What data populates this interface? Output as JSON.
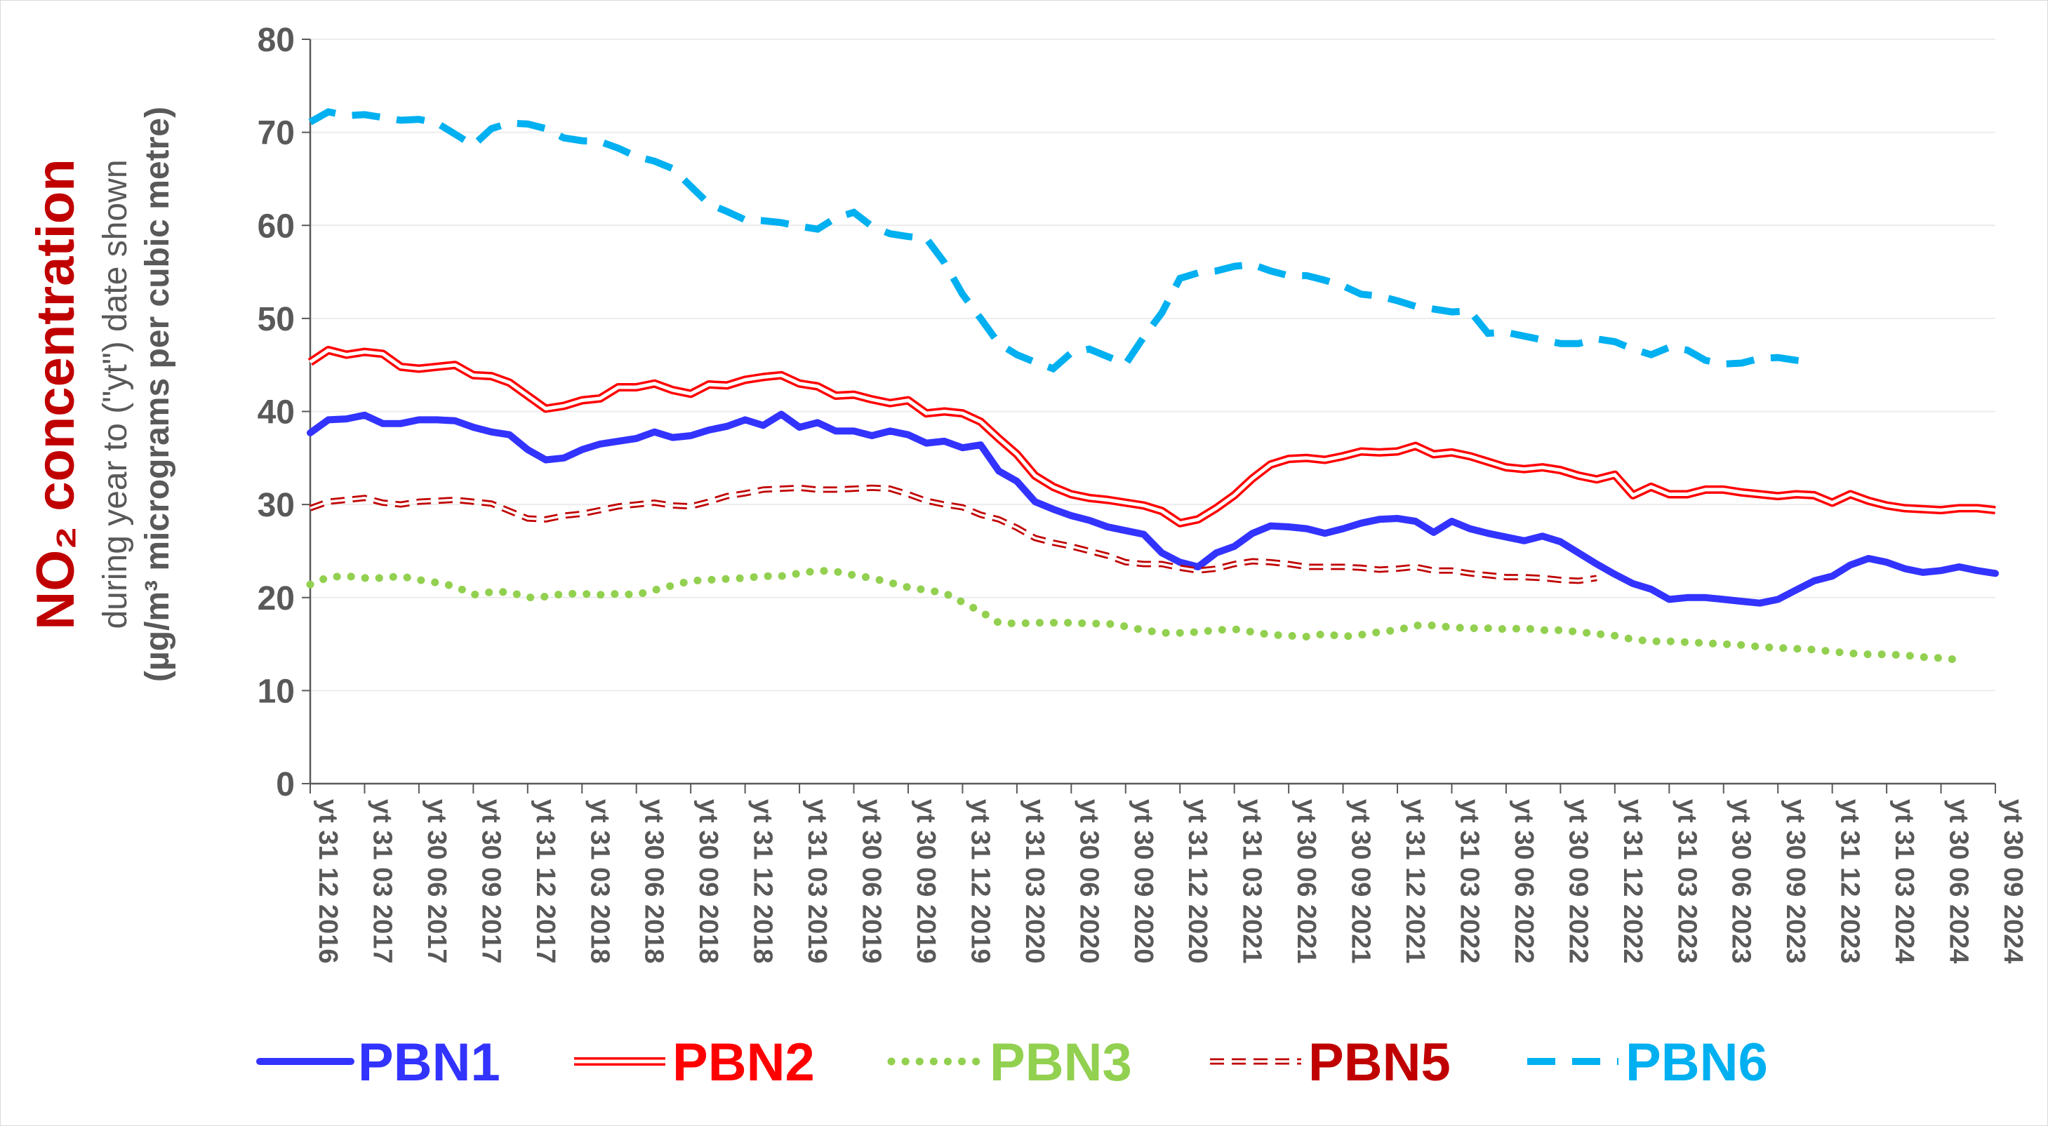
{
  "chart_data": {
    "type": "line",
    "ylabel": {
      "main": "NO₂ concentration",
      "line2": "during year to (\"yt\") date shown",
      "line3": "(µg/m³ micrograms per cubic metre)"
    },
    "ylim": [
      0,
      80
    ],
    "yticks": [
      0,
      10,
      20,
      30,
      40,
      50,
      60,
      70,
      80
    ],
    "grid": "horizontal",
    "legend_position": "bottom",
    "x_tick_labels": [
      "yt 31 12 2016",
      "yt 31 03 2017",
      "yt 30 06 2017",
      "yt 30 09 2017",
      "yt 31 12 2017",
      "yt 31 03 2018",
      "yt 30 06 2018",
      "yt 30 09 2018",
      "yt 31 12 2018",
      "yt 31 03 2019",
      "yt 30 06 2019",
      "yt 30 09 2019",
      "yt 31 12 2019",
      "yt 31 03 2020",
      "yt 30 06 2020",
      "yt 30 09 2020",
      "yt 31 12 2020",
      "yt 31 03 2021",
      "yt 30 06 2021",
      "yt 30 09 2021",
      "yt 31 12 2021",
      "yt 31 03 2022",
      "yt 30 06 2022",
      "yt 30 09 2022",
      "yt 31 12 2022",
      "yt 31 03 2023",
      "yt 30 06 2023",
      "yt 30 09 2023",
      "yt 31 12 2023",
      "yt 31 03 2024",
      "yt 30 06 2024",
      "yt 30 09 2024"
    ],
    "series": [
      {
        "name": "PBN1",
        "color": "#3333ff",
        "style": "solid",
        "values": [
          37.7,
          39.1,
          39.2,
          39.6,
          38.7,
          38.7,
          39.1,
          39.1,
          39.0,
          38.3,
          37.8,
          37.5,
          35.9,
          34.8,
          35.0,
          35.9,
          36.5,
          36.8,
          37.1,
          37.8,
          37.2,
          37.4,
          38.0,
          38.4,
          39.1,
          38.5,
          39.7,
          38.3,
          38.8,
          37.9,
          37.9,
          37.4,
          37.9,
          37.5,
          36.6,
          36.8,
          36.1,
          36.4,
          33.6,
          32.5,
          30.3,
          29.5,
          28.8,
          28.3,
          27.6,
          27.2,
          26.8,
          24.8,
          23.8,
          23.3,
          24.8,
          25.5,
          26.9,
          27.7,
          27.6,
          27.4,
          26.9,
          27.4,
          28.0,
          28.4,
          28.5,
          28.2,
          27.0,
          28.2,
          27.4,
          26.9,
          26.5,
          26.1,
          26.6,
          26.0,
          24.8,
          23.6,
          22.5,
          21.5,
          20.9,
          19.8,
          20.0,
          20.0,
          19.8,
          19.6,
          19.4,
          19.8,
          20.8,
          21.8,
          22.3,
          23.5,
          24.2,
          23.8,
          23.1,
          22.7,
          22.9,
          23.3,
          22.9,
          22.6
        ]
      },
      {
        "name": "PBN2",
        "color": "#ff0000",
        "style": "double",
        "values": [
          45.3,
          46.6,
          46.1,
          46.4,
          46.2,
          44.8,
          44.6,
          44.8,
          45.0,
          43.9,
          43.8,
          43.1,
          41.7,
          40.3,
          40.6,
          41.2,
          41.4,
          42.6,
          42.6,
          43.0,
          42.3,
          41.9,
          42.9,
          42.8,
          43.4,
          43.7,
          43.9,
          43.0,
          42.7,
          41.7,
          41.8,
          41.3,
          40.9,
          41.2,
          39.8,
          40.0,
          39.8,
          38.9,
          37.1,
          35.4,
          33.1,
          31.9,
          31.1,
          30.7,
          30.5,
          30.2,
          29.9,
          29.3,
          28.0,
          28.4,
          29.6,
          31.0,
          32.8,
          34.3,
          34.9,
          35.0,
          34.8,
          35.2,
          35.7,
          35.6,
          35.7,
          36.3,
          35.4,
          35.6,
          35.2,
          34.6,
          34.0,
          33.8,
          34.0,
          33.7,
          33.1,
          32.7,
          33.2,
          31.0,
          31.9,
          31.1,
          31.1,
          31.6,
          31.6,
          31.3,
          31.1,
          30.9,
          31.1,
          31.0,
          30.2,
          31.1,
          30.4,
          29.9,
          29.6,
          29.5,
          29.4,
          29.6,
          29.6,
          29.4
        ]
      },
      {
        "name": "PBN3",
        "color": "#92d050",
        "style": "dotted",
        "values": [
          21.4,
          22.2,
          22.3,
          22.1,
          22.1,
          22.3,
          21.9,
          21.6,
          21.2,
          20.3,
          20.6,
          20.6,
          20.0,
          20.1,
          20.4,
          20.4,
          20.3,
          20.4,
          20.3,
          20.8,
          21.3,
          21.8,
          21.9,
          22.0,
          22.1,
          22.3,
          22.3,
          22.6,
          22.9,
          22.8,
          22.4,
          22.1,
          21.6,
          21.1,
          20.8,
          20.5,
          19.5,
          18.5,
          17.3,
          17.2,
          17.3,
          17.3,
          17.3,
          17.2,
          17.2,
          16.9,
          16.5,
          16.2,
          16.2,
          16.3,
          16.5,
          16.6,
          16.3,
          16.0,
          15.9,
          15.8,
          16.1,
          15.8,
          16.0,
          16.3,
          16.5,
          17.0,
          17.0,
          16.8,
          16.7,
          16.7,
          16.6,
          16.7,
          16.5,
          16.5,
          16.3,
          16.1,
          15.9,
          15.5,
          15.3,
          15.3,
          15.2,
          15.1,
          15.0,
          14.9,
          14.7,
          14.6,
          14.5,
          14.4,
          14.2,
          14.0,
          13.9,
          13.9,
          13.8,
          13.6,
          13.5,
          13.3
        ]
      },
      {
        "name": "PBN5",
        "color": "#c00000",
        "style": "dashed-double",
        "values": [
          29.6,
          30.3,
          30.5,
          30.7,
          30.2,
          30.0,
          30.3,
          30.4,
          30.5,
          30.3,
          30.1,
          29.3,
          28.5,
          28.4,
          28.8,
          29.0,
          29.4,
          29.8,
          30.0,
          30.2,
          29.9,
          29.8,
          30.3,
          30.9,
          31.2,
          31.6,
          31.7,
          31.8,
          31.6,
          31.6,
          31.7,
          31.8,
          31.7,
          31.1,
          30.4,
          30.0,
          29.7,
          28.9,
          28.4,
          27.5,
          26.4,
          25.9,
          25.5,
          25.0,
          24.5,
          23.8,
          23.6,
          23.6,
          23.2,
          22.9,
          23.1,
          23.6,
          23.9,
          23.8,
          23.6,
          23.3,
          23.3,
          23.3,
          23.2,
          23.0,
          23.1,
          23.3,
          22.9,
          22.9,
          22.6,
          22.4,
          22.2,
          22.2,
          22.1,
          21.9,
          21.8,
          22.1
        ]
      },
      {
        "name": "PBN6",
        "color": "#00b0f0",
        "style": "dashed",
        "values": [
          71.1,
          72.2,
          71.8,
          71.9,
          71.6,
          71.3,
          71.4,
          71.0,
          69.8,
          68.6,
          70.4,
          71.0,
          70.9,
          70.4,
          69.4,
          69.1,
          69.0,
          68.3,
          67.4,
          66.9,
          66.1,
          64.2,
          62.3,
          61.5,
          60.6,
          60.5,
          60.3,
          59.9,
          59.6,
          60.8,
          61.4,
          59.9,
          59.1,
          58.8,
          58.6,
          56.0,
          52.6,
          50.0,
          47.3,
          46.1,
          45.3,
          44.6,
          46.3,
          46.7,
          45.9,
          45.1,
          48.0,
          50.6,
          54.3,
          54.9,
          55.1,
          55.6,
          55.8,
          55.1,
          54.6,
          54.6,
          54.1,
          53.5,
          52.6,
          52.4,
          51.9,
          51.3,
          51.0,
          50.7,
          50.8,
          48.4,
          48.5,
          48.1,
          47.7,
          47.3,
          47.3,
          47.8,
          47.5,
          46.7,
          46.1,
          46.9,
          46.6,
          45.5,
          45.1,
          45.2,
          45.7,
          45.8,
          45.5,
          45.3
        ]
      }
    ]
  }
}
